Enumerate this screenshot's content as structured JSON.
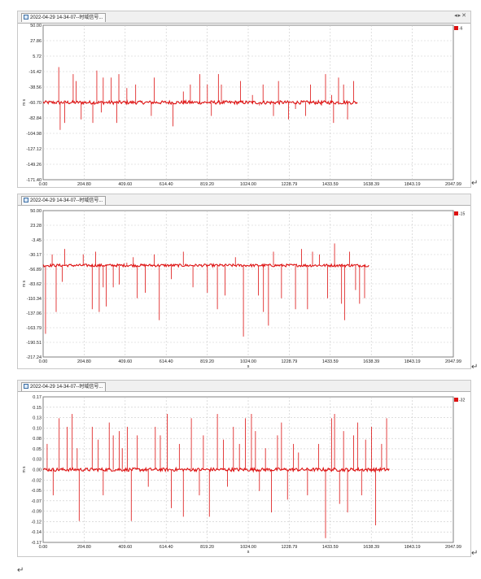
{
  "charts": [
    {
      "tab_title": "2022-04-29 14-34-07--时域信号...",
      "chart_data": {
        "type": "line",
        "xlabel": "s",
        "ylabel": "m s",
        "y_ticks": [
          "50.00",
          "27.86",
          "5.72",
          "-16.42",
          "-38.56",
          "-60.70",
          "-82.84",
          "-104.98",
          "-127.12",
          "-149.26",
          "-171.40"
        ],
        "ylim": [
          -171.4,
          50.0
        ],
        "x_ticks": [
          "0.00",
          "204.80",
          "409.60",
          "614.40",
          "819.20",
          "1024.00",
          "1228.79",
          "1433.59",
          "1638.39",
          "1843.19",
          "2047.99"
        ],
        "xlim": [
          0,
          2047.99
        ],
        "grid": true,
        "legend": "top-right",
        "series": [
          {
            "name": "-6",
            "color": "#dd1111",
            "x_end": 1570,
            "baseline": -60.7,
            "noise": 2.5,
            "spikes": [
              [
                78,
                -10
              ],
              [
                85,
                -100
              ],
              [
                108,
                -90
              ],
              [
                150,
                -20
              ],
              [
                165,
                -30
              ],
              [
                190,
                -85
              ],
              [
                248,
                -90
              ],
              [
                268,
                -15
              ],
              [
                290,
                -75
              ],
              [
                300,
                -25
              ],
              [
                340,
                -25
              ],
              [
                368,
                -90
              ],
              [
                378,
                -20
              ],
              [
                418,
                -40
              ],
              [
                462,
                -35
              ],
              [
                540,
                -80
              ],
              [
                555,
                -25
              ],
              [
                648,
                -95
              ],
              [
                700,
                -45
              ],
              [
                735,
                -35
              ],
              [
                782,
                -20
              ],
              [
                820,
                -35
              ],
              [
                840,
                -80
              ],
              [
                875,
                -20
              ],
              [
                890,
                -35
              ],
              [
                985,
                -30
              ],
              [
                1045,
                -50
              ],
              [
                1080,
                -65
              ],
              [
                1098,
                -35
              ],
              [
                1150,
                -80
              ],
              [
                1175,
                -30
              ],
              [
                1225,
                -85
              ],
              [
                1260,
                -70
              ],
              [
                1310,
                -80
              ],
              [
                1335,
                -35
              ],
              [
                1390,
                -65
              ],
              [
                1410,
                -20
              ],
              [
                1440,
                -50
              ],
              [
                1450,
                -90
              ],
              [
                1475,
                -25
              ],
              [
                1500,
                -35
              ],
              [
                1520,
                -85
              ],
              [
                1550,
                -30
              ]
            ]
          }
        ]
      }
    },
    {
      "tab_title": "2022-04-29 14-34-07--时域信号...",
      "chart_data": {
        "type": "line",
        "xlabel": "s",
        "ylabel": "m s",
        "y_ticks": [
          "50.00",
          "23.28",
          "-3.45",
          "-30.17",
          "-56.89",
          "-83.62",
          "-110.34",
          "-137.06",
          "-163.79",
          "-190.51",
          "-217.24"
        ],
        "ylim": [
          -217.24,
          50.0
        ],
        "x_ticks": [
          "0.00",
          "204.80",
          "409.60",
          "614.40",
          "819.20",
          "1024.00",
          "1228.79",
          "1433.59",
          "1638.39",
          "1843.19",
          "2047.99"
        ],
        "xlim": [
          0,
          2047.99
        ],
        "grid": true,
        "legend": "top-right",
        "series": [
          {
            "name": "-15",
            "color": "#dd1111",
            "x_end": 1630,
            "baseline": -50.0,
            "noise": 2.5,
            "spikes": [
              [
                12,
                -175
              ],
              [
                45,
                -30
              ],
              [
                65,
                -135
              ],
              [
                95,
                -80
              ],
              [
                108,
                -20
              ],
              [
                200,
                -30
              ],
              [
                245,
                -130
              ],
              [
                262,
                -25
              ],
              [
                280,
                -135
              ],
              [
                300,
                -90
              ],
              [
                315,
                -125
              ],
              [
                350,
                -90
              ],
              [
                380,
                -85
              ],
              [
                418,
                -45
              ],
              [
                450,
                -35
              ],
              [
                470,
                -110
              ],
              [
                510,
                -100
              ],
              [
                555,
                -30
              ],
              [
                580,
                -150
              ],
              [
                640,
                -75
              ],
              [
                700,
                -25
              ],
              [
                748,
                -90
              ],
              [
                782,
                -50
              ],
              [
                820,
                -100
              ],
              [
                870,
                -130
              ],
              [
                908,
                -105
              ],
              [
                960,
                -35
              ],
              [
                1000,
                -180
              ],
              [
                1075,
                -105
              ],
              [
                1100,
                -135
              ],
              [
                1125,
                -160
              ],
              [
                1150,
                -25
              ],
              [
                1190,
                -110
              ],
              [
                1260,
                -130
              ],
              [
                1290,
                -20
              ],
              [
                1320,
                -130
              ],
              [
                1345,
                -25
              ],
              [
                1380,
                -30
              ],
              [
                1420,
                -110
              ],
              [
                1455,
                -10
              ],
              [
                1490,
                -120
              ],
              [
                1505,
                -150
              ],
              [
                1530,
                -25
              ],
              [
                1560,
                -95
              ],
              [
                1580,
                -120
              ],
              [
                1605,
                -110
              ]
            ]
          }
        ]
      }
    },
    {
      "tab_title": "2022-04-29 14-34-07--时域信号...",
      "chart_data": {
        "type": "line",
        "xlabel": "s",
        "ylabel": "m s",
        "y_ticks": [
          "0.17",
          "0.15",
          "0.13",
          "0.10",
          "0.08",
          "0.05",
          "0.03",
          "0.00",
          "-0.02",
          "-0.05",
          "-0.07",
          "-0.09",
          "-0.12",
          "-0.14",
          "-0.17"
        ],
        "ylim": [
          -0.17,
          0.17
        ],
        "x_ticks": [
          "0.00",
          "204.80",
          "409.60",
          "614.40",
          "819.20",
          "1024.00",
          "1228.79",
          "1433.59",
          "1638.39",
          "1843.19",
          "2047.99"
        ],
        "xlim": [
          0,
          2047.99
        ],
        "grid": true,
        "legend": "top-right",
        "series": [
          {
            "name": "-32",
            "color": "#dd1111",
            "x_end": 1730,
            "baseline": 0.0,
            "noise": 0.004,
            "spikes": [
              [
                20,
                0.06
              ],
              [
                50,
                -0.06
              ],
              [
                80,
                0.12
              ],
              [
                120,
                0.1
              ],
              [
                145,
                0.13
              ],
              [
                170,
                0.05
              ],
              [
                180,
                -0.12
              ],
              [
                245,
                0.1
              ],
              [
                275,
                0.07
              ],
              [
                300,
                -0.06
              ],
              [
                330,
                0.11
              ],
              [
                350,
                0.08
              ],
              [
                380,
                0.09
              ],
              [
                395,
                0.05
              ],
              [
                420,
                0.1
              ],
              [
                440,
                -0.12
              ],
              [
                470,
                0.08
              ],
              [
                525,
                -0.04
              ],
              [
                560,
                0.1
              ],
              [
                585,
                0.08
              ],
              [
                620,
                0.13
              ],
              [
                640,
                -0.09
              ],
              [
                680,
                0.06
              ],
              [
                700,
                -0.11
              ],
              [
                740,
                0.12
              ],
              [
                780,
                -0.06
              ],
              [
                800,
                0.08
              ],
              [
                830,
                -0.11
              ],
              [
                870,
                0.13
              ],
              [
                900,
                0.07
              ],
              [
                920,
                -0.04
              ],
              [
                950,
                0.1
              ],
              [
                980,
                0.06
              ],
              [
                1010,
                0.12
              ],
              [
                1040,
                0.13
              ],
              [
                1060,
                0.09
              ],
              [
                1080,
                -0.05
              ],
              [
                1110,
                0.05
              ],
              [
                1140,
                -0.1
              ],
              [
                1170,
                0.08
              ],
              [
                1190,
                0.11
              ],
              [
                1220,
                -0.07
              ],
              [
                1250,
                0.06
              ],
              [
                1275,
                0.04
              ],
              [
                1320,
                -0.06
              ],
              [
                1375,
                0.06
              ],
              [
                1410,
                -0.16
              ],
              [
                1440,
                0.12
              ],
              [
                1455,
                0.13
              ],
              [
                1480,
                -0.08
              ],
              [
                1500,
                0.09
              ],
              [
                1520,
                -0.1
              ],
              [
                1550,
                0.08
              ],
              [
                1570,
                0.11
              ],
              [
                1590,
                -0.06
              ],
              [
                1610,
                0.07
              ],
              [
                1640,
                0.1
              ],
              [
                1660,
                -0.13
              ],
              [
                1690,
                0.06
              ],
              [
                1715,
                0.12
              ]
            ]
          }
        ]
      }
    }
  ]
}
